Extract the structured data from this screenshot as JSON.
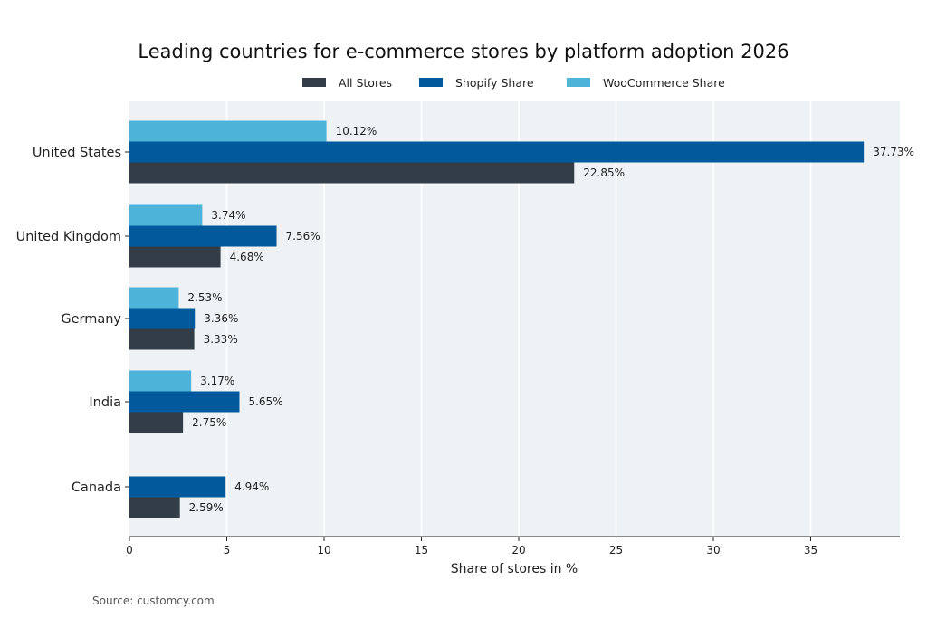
{
  "chart_data": {
    "type": "bar",
    "orientation": "horizontal",
    "title": "Leading countries for e-commerce stores by platform adoption 2026",
    "xlabel": "Share of stores in %",
    "ylabel": "",
    "categories": [
      "United States",
      "United Kingdom",
      "Germany",
      "India",
      "Canada"
    ],
    "series": [
      {
        "name": "All Stores",
        "color": "#333d48",
        "values": [
          22.85,
          4.68,
          3.33,
          2.75,
          2.59
        ],
        "labels": [
          "22.85%",
          "4.68%",
          "3.33%",
          "2.75%",
          "2.59%"
        ]
      },
      {
        "name": "Shopify Share",
        "color": "#02599c",
        "values": [
          37.73,
          7.56,
          3.36,
          5.65,
          4.94
        ],
        "labels": [
          "37.73%",
          "7.56%",
          "3.36%",
          "5.65%",
          "4.94%"
        ]
      },
      {
        "name": "WooCommerce Share",
        "color": "#4db3d9",
        "values": [
          10.12,
          3.74,
          2.53,
          3.17,
          null
        ],
        "labels": [
          "10.12%",
          "3.74%",
          "2.53%",
          "3.17%",
          null
        ]
      }
    ],
    "xlim": [
      0,
      39.6
    ],
    "xticks": [
      "0",
      "5",
      "10",
      "15",
      "20",
      "25",
      "30",
      "35"
    ],
    "grid": true,
    "legend_position": "top-center",
    "plot_background": "#eef2f5",
    "source": "Source: customcy.com"
  }
}
